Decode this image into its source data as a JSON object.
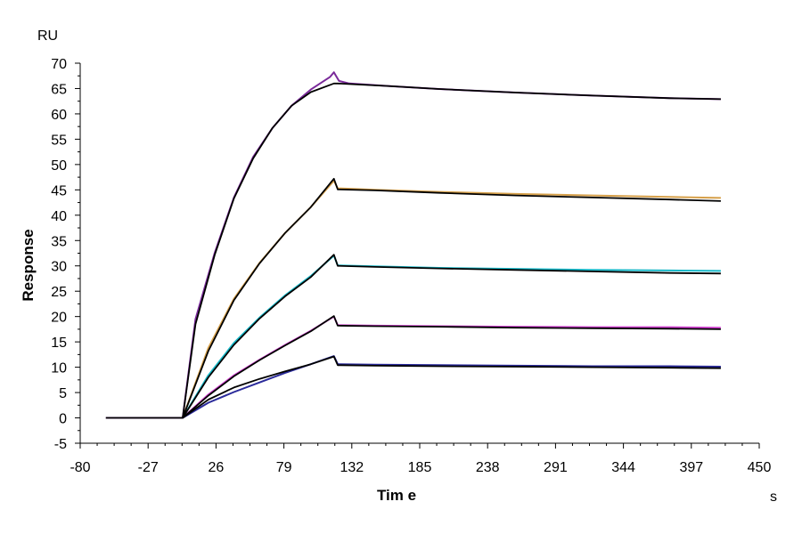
{
  "chart_data": {
    "type": "line",
    "title": "",
    "xlabel": "Tim e",
    "ylabel": "Response",
    "x_unit": "s",
    "y_unit": "RU",
    "xlim": [
      -80,
      450
    ],
    "ylim": [
      -5,
      70
    ],
    "x_ticks": [
      -80,
      -27,
      26,
      79,
      132,
      185,
      238,
      291,
      344,
      397,
      450
    ],
    "y_ticks": [
      -5,
      0,
      5,
      10,
      15,
      20,
      25,
      30,
      35,
      40,
      45,
      50,
      55,
      60,
      65,
      70
    ],
    "grid": false,
    "legend": "none",
    "series": [
      {
        "color": "#7a2a9a",
        "x": [
          -60,
          0,
          10,
          25,
          40,
          55,
          70,
          85,
          100,
          115,
          118,
          122,
          130,
          160,
          200,
          260,
          320,
          380,
          420
        ],
        "y": [
          0,
          0,
          19.5,
          32.6,
          43.5,
          51.5,
          57.2,
          61.6,
          64.8,
          67.3,
          68.2,
          66.5,
          66.0,
          65.5,
          64.9,
          64.2,
          63.6,
          63.1,
          62.9
        ]
      },
      {
        "color": "#d6a04a",
        "x": [
          0,
          20,
          40,
          60,
          80,
          100,
          118,
          121,
          150,
          200,
          260,
          320,
          380,
          420
        ],
        "y": [
          0,
          13.8,
          23.5,
          30.6,
          36.5,
          41.6,
          46.8,
          45.3,
          45.0,
          44.6,
          44.2,
          43.9,
          43.6,
          43.4
        ]
      },
      {
        "color": "#18b8c8",
        "x": [
          0,
          20,
          40,
          60,
          80,
          100,
          118,
          121,
          150,
          200,
          260,
          320,
          380,
          420
        ],
        "y": [
          0,
          8.4,
          14.8,
          19.8,
          24.2,
          28.0,
          32.0,
          30.1,
          29.9,
          29.6,
          29.4,
          29.2,
          29.1,
          29.0
        ]
      },
      {
        "color": "#d040d0",
        "x": [
          0,
          20,
          40,
          60,
          80,
          100,
          118,
          121,
          150,
          200,
          260,
          320,
          380,
          420
        ],
        "y": [
          0,
          4.6,
          8.4,
          11.5,
          14.4,
          17.2,
          20.0,
          18.3,
          18.2,
          18.1,
          18.0,
          17.9,
          17.9,
          17.8
        ]
      },
      {
        "color": "#2a2a9a",
        "x": [
          0,
          20,
          40,
          60,
          80,
          100,
          118,
          121,
          150,
          200,
          260,
          320,
          380,
          420
        ],
        "y": [
          0,
          3.0,
          5.1,
          7.0,
          8.9,
          10.6,
          12.2,
          10.6,
          10.5,
          10.4,
          10.3,
          10.2,
          10.2,
          10.1
        ]
      }
    ],
    "fit_series": [
      {
        "color": "#000000",
        "x": [
          -60,
          0,
          10,
          25,
          40,
          55,
          70,
          85,
          100,
          118,
          121,
          160,
          200,
          260,
          320,
          380,
          420
        ],
        "y": [
          0,
          0,
          18.5,
          32.2,
          43.3,
          51.2,
          57.2,
          61.6,
          64.3,
          66.0,
          66.0,
          65.5,
          64.9,
          64.2,
          63.6,
          63.1,
          62.9
        ]
      },
      {
        "color": "#000000",
        "x": [
          0,
          20,
          40,
          60,
          80,
          100,
          118,
          121,
          150,
          200,
          260,
          320,
          380,
          420
        ],
        "y": [
          0,
          13.2,
          23.2,
          30.5,
          36.5,
          41.6,
          47.2,
          45.1,
          44.9,
          44.4,
          43.9,
          43.5,
          43.1,
          42.8
        ]
      },
      {
        "color": "#000000",
        "x": [
          0,
          20,
          40,
          60,
          80,
          100,
          118,
          121,
          150,
          200,
          260,
          320,
          380,
          420
        ],
        "y": [
          0,
          8.0,
          14.4,
          19.6,
          24.0,
          27.8,
          32.2,
          30.0,
          29.8,
          29.5,
          29.2,
          28.9,
          28.6,
          28.5
        ]
      },
      {
        "color": "#000000",
        "x": [
          0,
          20,
          40,
          60,
          80,
          100,
          118,
          121,
          150,
          200,
          260,
          320,
          380,
          420
        ],
        "y": [
          0,
          4.4,
          8.2,
          11.4,
          14.3,
          17.1,
          20.1,
          18.2,
          18.1,
          18.0,
          17.8,
          17.7,
          17.6,
          17.5
        ]
      },
      {
        "color": "#000000",
        "x": [
          0,
          20,
          40,
          60,
          80,
          100,
          118,
          121,
          150,
          200,
          260,
          320,
          380,
          420
        ],
        "y": [
          0,
          3.6,
          6.0,
          7.7,
          9.2,
          10.6,
          12.1,
          10.4,
          10.3,
          10.2,
          10.1,
          10.0,
          9.9,
          9.8
        ]
      }
    ]
  }
}
